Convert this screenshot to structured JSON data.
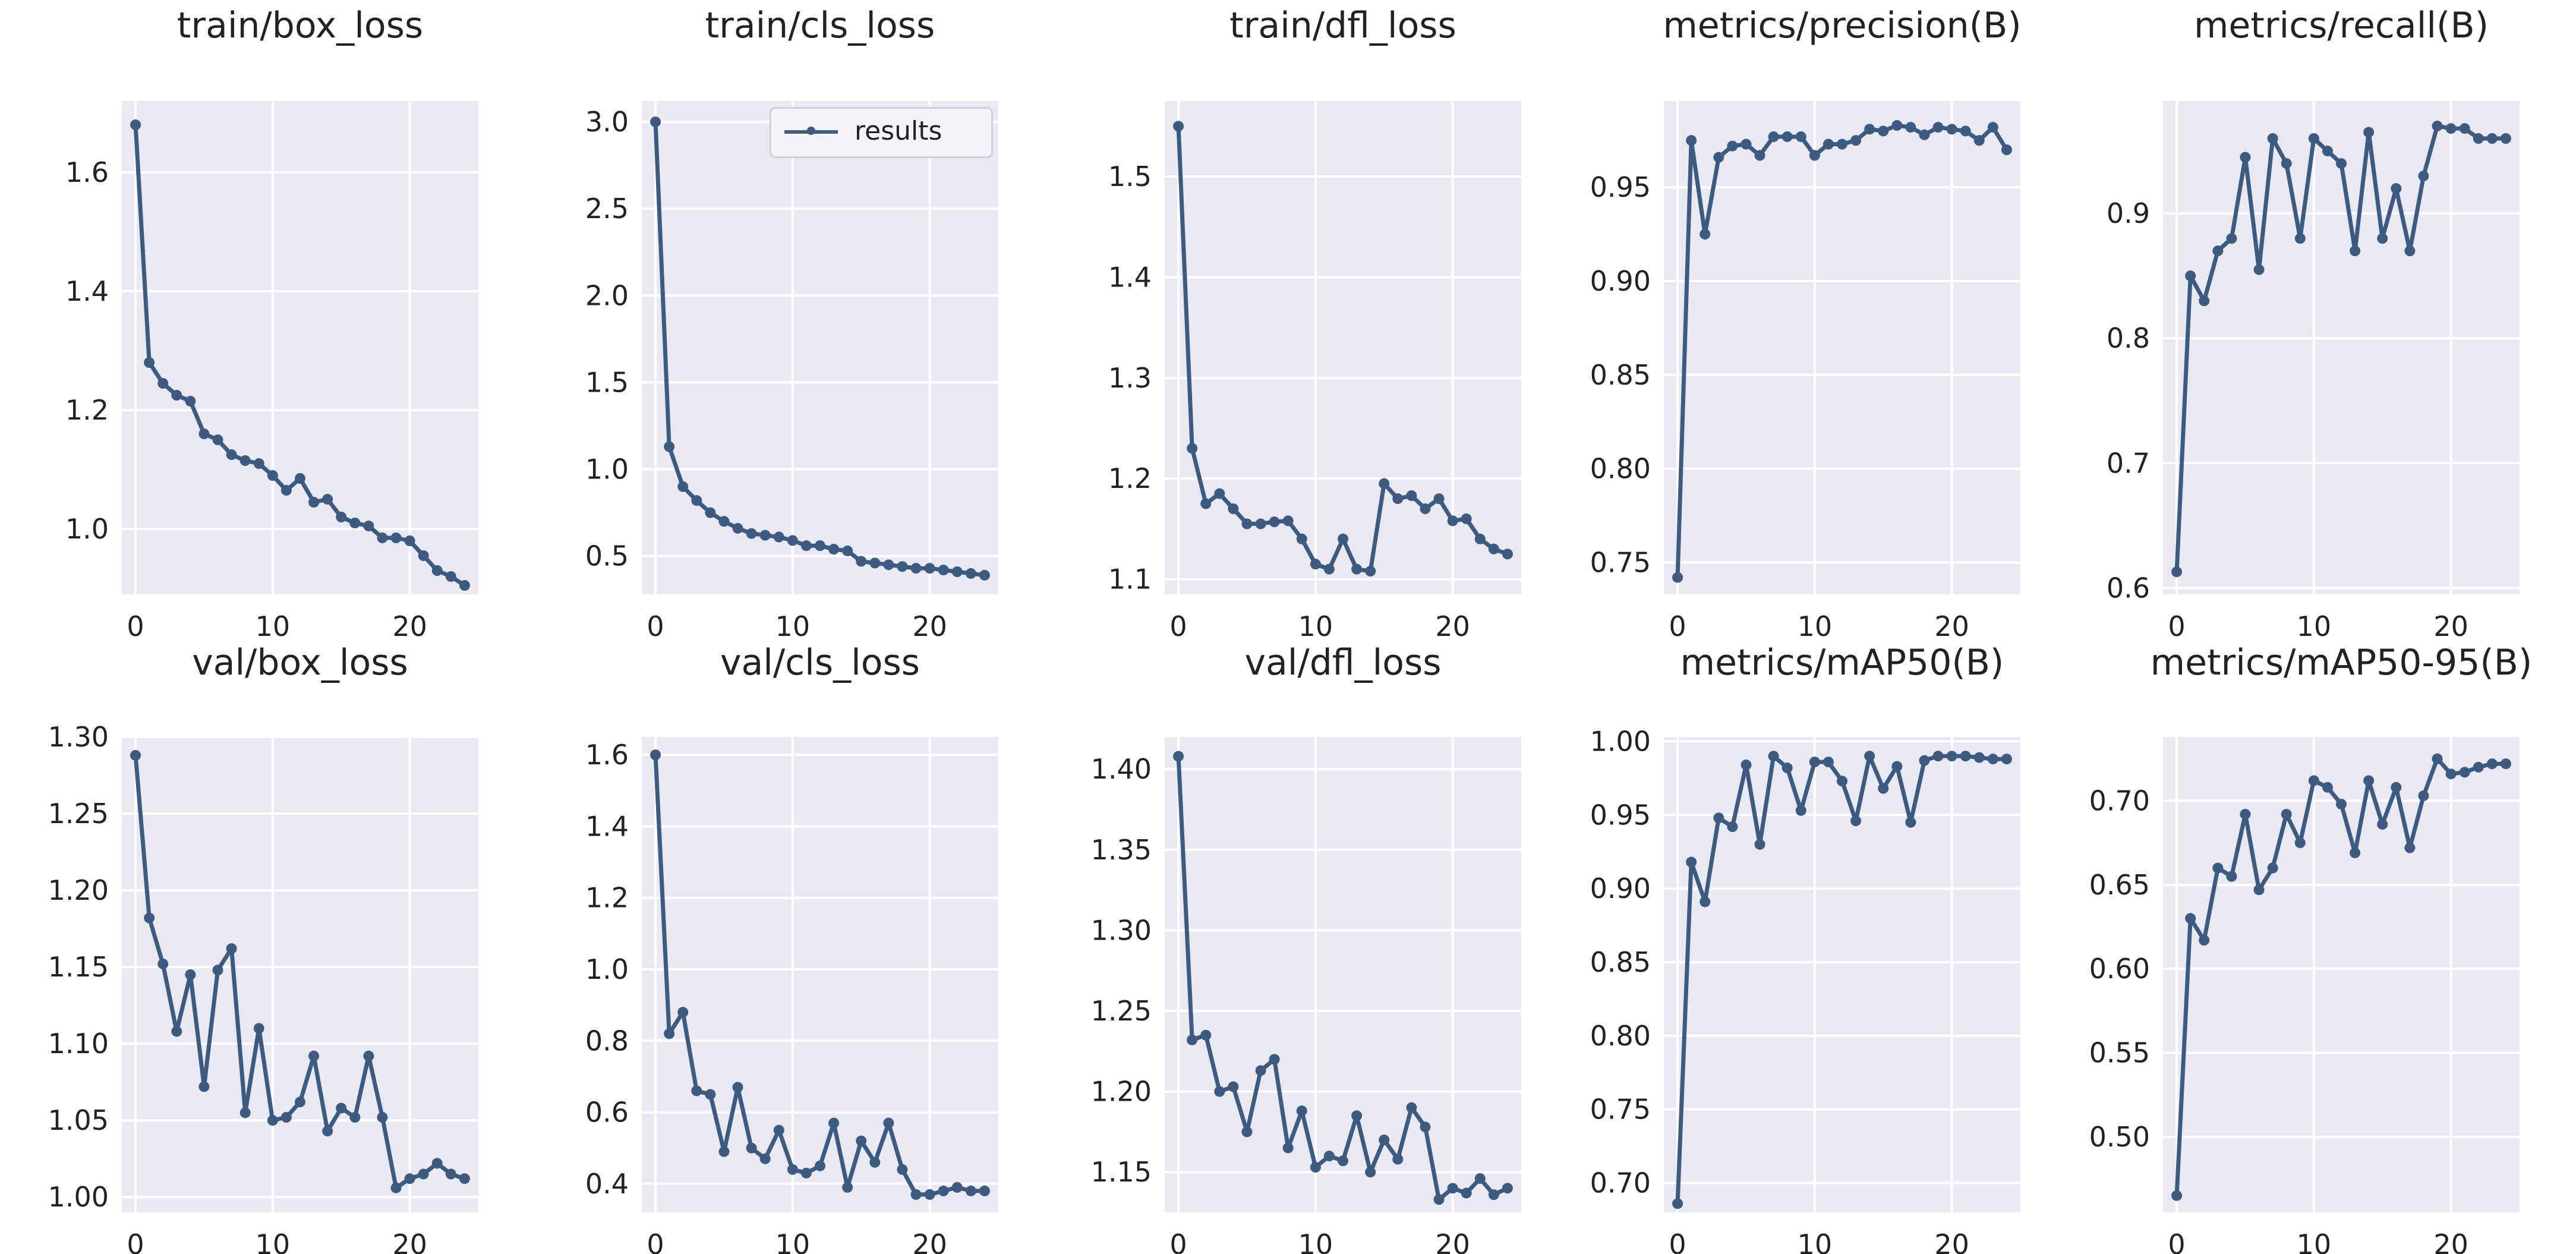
{
  "colors": {
    "line": "#3d5a80",
    "plot_background": "#e8e9f2",
    "grid": "#ffffff",
    "text": "#222222"
  },
  "legend_label": "results",
  "chart_data": [
    {
      "type": "line",
      "title": "train/box_loss",
      "x_ticks": [
        0,
        10,
        20
      ],
      "xlim": [
        -1,
        25
      ],
      "y_ticks": [
        1.0,
        1.2,
        1.4,
        1.6
      ],
      "y_tick_labels": [
        "1.0",
        "1.2",
        "1.4",
        "1.6"
      ],
      "ylim": [
        0.89,
        1.72
      ],
      "series": [
        {
          "name": "results",
          "x": [
            0,
            1,
            2,
            3,
            4,
            5,
            6,
            7,
            8,
            9,
            10,
            11,
            12,
            13,
            14,
            15,
            16,
            17,
            18,
            19,
            20,
            21,
            22,
            23,
            24
          ],
          "values": [
            1.68,
            1.28,
            1.245,
            1.225,
            1.215,
            1.16,
            1.15,
            1.125,
            1.115,
            1.11,
            1.09,
            1.065,
            1.085,
            1.045,
            1.05,
            1.02,
            1.01,
            1.005,
            0.985,
            0.985,
            0.98,
            0.955,
            0.93,
            0.92,
            0.905
          ]
        }
      ]
    },
    {
      "type": "line",
      "title": "train/cls_loss",
      "x_ticks": [
        0,
        10,
        20
      ],
      "xlim": [
        -1,
        25
      ],
      "y_ticks": [
        0.5,
        1.0,
        1.5,
        2.0,
        2.5,
        3.0
      ],
      "y_tick_labels": [
        "0.5",
        "1.0",
        "1.5",
        "2.0",
        "2.5",
        "3.0"
      ],
      "ylim": [
        0.28,
        3.12
      ],
      "legend": "top-right",
      "series": [
        {
          "name": "results",
          "x": [
            0,
            1,
            2,
            3,
            4,
            5,
            6,
            7,
            8,
            9,
            10,
            11,
            12,
            13,
            14,
            15,
            16,
            17,
            18,
            19,
            20,
            21,
            22,
            23,
            24
          ],
          "values": [
            3.0,
            1.13,
            0.9,
            0.82,
            0.75,
            0.7,
            0.66,
            0.63,
            0.62,
            0.61,
            0.59,
            0.56,
            0.56,
            0.54,
            0.53,
            0.47,
            0.46,
            0.45,
            0.44,
            0.43,
            0.43,
            0.42,
            0.41,
            0.4,
            0.39
          ]
        }
      ]
    },
    {
      "type": "line",
      "title": "train/dfl_loss",
      "x_ticks": [
        0,
        10,
        20
      ],
      "xlim": [
        -1,
        25
      ],
      "y_ticks": [
        1.1,
        1.2,
        1.3,
        1.4,
        1.5
      ],
      "y_tick_labels": [
        "1.1",
        "1.2",
        "1.3",
        "1.4",
        "1.5"
      ],
      "ylim": [
        1.085,
        1.575
      ],
      "series": [
        {
          "name": "results",
          "x": [
            0,
            1,
            2,
            3,
            4,
            5,
            6,
            7,
            8,
            9,
            10,
            11,
            12,
            13,
            14,
            15,
            16,
            17,
            18,
            19,
            20,
            21,
            22,
            23,
            24
          ],
          "values": [
            1.55,
            1.23,
            1.175,
            1.185,
            1.17,
            1.155,
            1.155,
            1.157,
            1.158,
            1.14,
            1.115,
            1.11,
            1.14,
            1.11,
            1.108,
            1.195,
            1.18,
            1.183,
            1.17,
            1.18,
            1.158,
            1.16,
            1.14,
            1.13,
            1.125
          ]
        }
      ]
    },
    {
      "type": "line",
      "title": "metrics/precision(B)",
      "x_ticks": [
        0,
        10,
        20
      ],
      "xlim": [
        -1,
        25
      ],
      "y_ticks": [
        0.75,
        0.8,
        0.85,
        0.9,
        0.95
      ],
      "y_tick_labels": [
        "0.75",
        "0.80",
        "0.85",
        "0.90",
        "0.95"
      ],
      "ylim": [
        0.733,
        0.996
      ],
      "series": [
        {
          "name": "results",
          "x": [
            0,
            1,
            2,
            3,
            4,
            5,
            6,
            7,
            8,
            9,
            10,
            11,
            12,
            13,
            14,
            15,
            16,
            17,
            18,
            19,
            20,
            21,
            22,
            23,
            24
          ],
          "values": [
            0.742,
            0.975,
            0.925,
            0.966,
            0.972,
            0.973,
            0.967,
            0.977,
            0.977,
            0.977,
            0.967,
            0.973,
            0.973,
            0.975,
            0.981,
            0.98,
            0.983,
            0.982,
            0.978,
            0.982,
            0.981,
            0.98,
            0.975,
            0.982,
            0.97
          ]
        }
      ]
    },
    {
      "type": "line",
      "title": "metrics/recall(B)",
      "x_ticks": [
        0,
        10,
        20
      ],
      "xlim": [
        -1,
        25
      ],
      "y_ticks": [
        0.6,
        0.7,
        0.8,
        0.9
      ],
      "y_tick_labels": [
        "0.6",
        "0.7",
        "0.8",
        "0.9"
      ],
      "ylim": [
        0.595,
        0.99
      ],
      "series": [
        {
          "name": "results",
          "x": [
            0,
            1,
            2,
            3,
            4,
            5,
            6,
            7,
            8,
            9,
            10,
            11,
            12,
            13,
            14,
            15,
            16,
            17,
            18,
            19,
            20,
            21,
            22,
            23,
            24
          ],
          "values": [
            0.613,
            0.85,
            0.83,
            0.87,
            0.88,
            0.945,
            0.855,
            0.96,
            0.94,
            0.88,
            0.96,
            0.95,
            0.94,
            0.87,
            0.965,
            0.88,
            0.92,
            0.87,
            0.93,
            0.97,
            0.968,
            0.968,
            0.96,
            0.96,
            0.96
          ]
        }
      ]
    },
    {
      "type": "line",
      "title": "val/box_loss",
      "x_ticks": [
        0,
        10,
        20
      ],
      "xlim": [
        -1,
        25
      ],
      "y_ticks": [
        1.0,
        1.05,
        1.1,
        1.15,
        1.2,
        1.25,
        1.3
      ],
      "y_tick_labels": [
        "1.00",
        "1.05",
        "1.10",
        "1.15",
        "1.20",
        "1.25",
        "1.30"
      ],
      "ylim": [
        0.99,
        1.3
      ],
      "series": [
        {
          "name": "results",
          "x": [
            0,
            1,
            2,
            3,
            4,
            5,
            6,
            7,
            8,
            9,
            10,
            11,
            12,
            13,
            14,
            15,
            16,
            17,
            18,
            19,
            20,
            21,
            22,
            23,
            24
          ],
          "values": [
            1.288,
            1.182,
            1.152,
            1.108,
            1.145,
            1.072,
            1.148,
            1.162,
            1.055,
            1.11,
            1.05,
            1.052,
            1.062,
            1.092,
            1.043,
            1.058,
            1.052,
            1.092,
            1.052,
            1.006,
            1.012,
            1.015,
            1.022,
            1.015,
            1.012
          ]
        }
      ]
    },
    {
      "type": "line",
      "title": "val/cls_loss",
      "x_ticks": [
        0,
        10,
        20
      ],
      "xlim": [
        -1,
        25
      ],
      "y_ticks": [
        0.4,
        0.6,
        0.8,
        1.0,
        1.2,
        1.4,
        1.6
      ],
      "y_tick_labels": [
        "0.4",
        "0.6",
        "0.8",
        "1.0",
        "1.2",
        "1.4",
        "1.6"
      ],
      "ylim": [
        0.32,
        1.65
      ],
      "series": [
        {
          "name": "results",
          "x": [
            0,
            1,
            2,
            3,
            4,
            5,
            6,
            7,
            8,
            9,
            10,
            11,
            12,
            13,
            14,
            15,
            16,
            17,
            18,
            19,
            20,
            21,
            22,
            23,
            24
          ],
          "values": [
            1.6,
            0.82,
            0.88,
            0.66,
            0.65,
            0.49,
            0.67,
            0.5,
            0.47,
            0.55,
            0.44,
            0.43,
            0.45,
            0.57,
            0.39,
            0.52,
            0.46,
            0.57,
            0.44,
            0.37,
            0.37,
            0.38,
            0.39,
            0.38,
            0.38
          ]
        }
      ]
    },
    {
      "type": "line",
      "title": "val/dfl_loss",
      "x_ticks": [
        0,
        10,
        20
      ],
      "xlim": [
        -1,
        25
      ],
      "y_ticks": [
        1.15,
        1.2,
        1.25,
        1.3,
        1.35,
        1.4
      ],
      "y_tick_labels": [
        "1.15",
        "1.20",
        "1.25",
        "1.30",
        "1.35",
        "1.40"
      ],
      "ylim": [
        1.125,
        1.42
      ],
      "series": [
        {
          "name": "results",
          "x": [
            0,
            1,
            2,
            3,
            4,
            5,
            6,
            7,
            8,
            9,
            10,
            11,
            12,
            13,
            14,
            15,
            16,
            17,
            18,
            19,
            20,
            21,
            22,
            23,
            24
          ],
          "values": [
            1.408,
            1.232,
            1.235,
            1.2,
            1.203,
            1.175,
            1.213,
            1.22,
            1.165,
            1.188,
            1.153,
            1.16,
            1.157,
            1.185,
            1.15,
            1.17,
            1.158,
            1.19,
            1.178,
            1.133,
            1.14,
            1.137,
            1.146,
            1.136,
            1.14
          ]
        }
      ]
    },
    {
      "type": "line",
      "title": "metrics/mAP50(B)",
      "x_ticks": [
        0,
        10,
        20
      ],
      "xlim": [
        -1,
        25
      ],
      "y_ticks": [
        0.7,
        0.75,
        0.8,
        0.85,
        0.9,
        0.95,
        1.0
      ],
      "y_tick_labels": [
        "0.70",
        "0.75",
        "0.80",
        "0.85",
        "0.90",
        "0.95",
        "1.00"
      ],
      "ylim": [
        0.68,
        1.003
      ],
      "series": [
        {
          "name": "results",
          "x": [
            0,
            1,
            2,
            3,
            4,
            5,
            6,
            7,
            8,
            9,
            10,
            11,
            12,
            13,
            14,
            15,
            16,
            17,
            18,
            19,
            20,
            21,
            22,
            23,
            24
          ],
          "values": [
            0.686,
            0.918,
            0.891,
            0.948,
            0.942,
            0.984,
            0.93,
            0.99,
            0.982,
            0.953,
            0.986,
            0.986,
            0.973,
            0.946,
            0.99,
            0.968,
            0.983,
            0.945,
            0.987,
            0.99,
            0.99,
            0.99,
            0.989,
            0.988,
            0.988
          ]
        }
      ]
    },
    {
      "type": "line",
      "title": "metrics/mAP50-95(B)",
      "x_ticks": [
        0,
        10,
        20
      ],
      "xlim": [
        -1,
        25
      ],
      "y_ticks": [
        0.5,
        0.55,
        0.6,
        0.65,
        0.7
      ],
      "y_tick_labels": [
        "0.50",
        "0.55",
        "0.60",
        "0.65",
        "0.70"
      ],
      "ylim": [
        0.455,
        0.738
      ],
      "series": [
        {
          "name": "results",
          "x": [
            0,
            1,
            2,
            3,
            4,
            5,
            6,
            7,
            8,
            9,
            10,
            11,
            12,
            13,
            14,
            15,
            16,
            17,
            18,
            19,
            20,
            21,
            22,
            23,
            24
          ],
          "values": [
            0.465,
            0.63,
            0.617,
            0.66,
            0.655,
            0.692,
            0.647,
            0.66,
            0.692,
            0.675,
            0.712,
            0.708,
            0.698,
            0.669,
            0.712,
            0.686,
            0.708,
            0.672,
            0.703,
            0.725,
            0.716,
            0.717,
            0.72,
            0.722,
            0.722
          ]
        }
      ]
    }
  ]
}
